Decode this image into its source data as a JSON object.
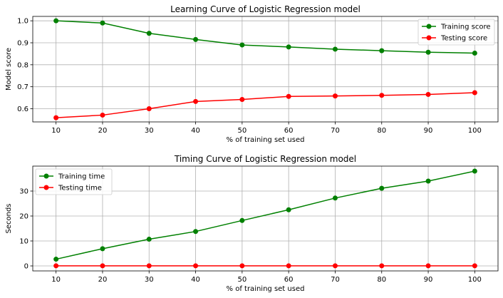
{
  "chart_data": [
    {
      "type": "line",
      "title": "Learning Curve of Logistic Regression model",
      "xlabel": "% of training set used",
      "ylabel": "Model score",
      "x": [
        10,
        20,
        30,
        40,
        50,
        60,
        70,
        80,
        90,
        100
      ],
      "xlim": [
        5,
        105
      ],
      "ylim": [
        0.54,
        1.02
      ],
      "xticks": [
        10,
        20,
        30,
        40,
        50,
        60,
        70,
        80,
        90,
        100
      ],
      "yticks": [
        0.6,
        0.7,
        0.8,
        0.9,
        1.0
      ],
      "ytick_labels": [
        "0.6",
        "0.7",
        "0.8",
        "0.9",
        "1.0"
      ],
      "grid": true,
      "legend": "upper-right",
      "series": [
        {
          "name": "Training score",
          "color": "#008000",
          "values": [
            1.0,
            0.99,
            0.943,
            0.915,
            0.89,
            0.881,
            0.871,
            0.864,
            0.857,
            0.853
          ]
        },
        {
          "name": "Testing score",
          "color": "#ff0000",
          "values": [
            0.559,
            0.571,
            0.6,
            0.633,
            0.642,
            0.656,
            0.658,
            0.661,
            0.665,
            0.673
          ]
        }
      ]
    },
    {
      "type": "line",
      "title": "Timing Curve of Logistic Regression model",
      "xlabel": "% of training set used",
      "ylabel": "Seconds",
      "x": [
        10,
        20,
        30,
        40,
        50,
        60,
        70,
        80,
        90,
        100
      ],
      "xlim": [
        5,
        105
      ],
      "ylim": [
        -2,
        40
      ],
      "xticks": [
        10,
        20,
        30,
        40,
        50,
        60,
        70,
        80,
        90,
        100
      ],
      "yticks": [
        0,
        10,
        20,
        30
      ],
      "ytick_labels": [
        "0",
        "10",
        "20",
        "30"
      ],
      "grid": true,
      "legend": "upper-left",
      "series": [
        {
          "name": "Training time",
          "color": "#008000",
          "values": [
            2.7,
            6.9,
            10.7,
            13.8,
            18.2,
            22.5,
            27.2,
            31.1,
            34.0,
            38.0
          ]
        },
        {
          "name": "Testing time",
          "color": "#ff0000",
          "values": [
            0.05,
            0.05,
            0.05,
            0.05,
            0.05,
            0.05,
            0.05,
            0.05,
            0.05,
            0.05
          ]
        }
      ]
    }
  ]
}
